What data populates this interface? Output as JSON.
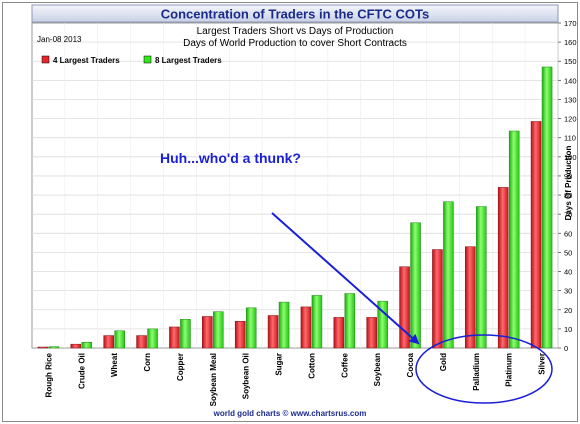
{
  "chart_data": {
    "type": "bar",
    "title": "Concentration of Traders in the CFTC COTs",
    "subtitle_1": "Largest Traders Short vs Days of Production",
    "subtitle_2": "Days of World Production to cover Short Contracts",
    "date_label": "Jan-08 2013",
    "ylabel": "Days Of Production",
    "ylim": [
      0,
      170
    ],
    "ytick_step": 10,
    "grid": true,
    "legend_position": "top-left",
    "categories": [
      "Rough Rice",
      "Crude Oil",
      "Wheat",
      "Corn",
      "Copper",
      "Soybean Meal",
      "Soybean Oil",
      "Sugar",
      "Cotton",
      "Coffee",
      "Soybean",
      "Cocoa",
      "Gold",
      "Palladium",
      "Platinum",
      "Silver"
    ],
    "series": [
      {
        "name": "4 Largest Traders",
        "color": "#e8242a",
        "values": [
          0.5,
          2,
          6.5,
          6.5,
          11,
          16.5,
          14,
          17,
          21.5,
          16,
          16,
          42.5,
          51.5,
          53,
          84,
          118.5
        ]
      },
      {
        "name": "8 Largest Traders",
        "color": "#33e61a",
        "values": [
          0.7,
          3,
          9,
          10,
          15,
          19,
          21,
          24,
          27.5,
          28.5,
          24.5,
          65.5,
          76.5,
          74,
          113.5,
          147
        ]
      }
    ],
    "annotation_text": "Huh...who'd a thunk?",
    "footer": "world gold charts © www.chartsrus.com"
  }
}
